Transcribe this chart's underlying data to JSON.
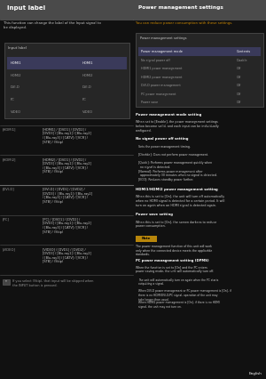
{
  "bg_color": "#111111",
  "panel_bg": "#1e1e1e",
  "header_bg": "#4a4a4a",
  "table_bg": "#262626",
  "table_selected_bg": "#3a3a5a",
  "white": "#ffffff",
  "light_text": "#cccccc",
  "mid_text": "#999999",
  "dim_text": "#888888",
  "sep_color": "#555555",
  "note_bg": "#b8860b",
  "left_panel": {
    "header": "Input label",
    "desc": "This function can change the label of the Input signal to\nbe displayed.",
    "table_title": "Input label",
    "table_rows": [
      [
        "HDMI1",
        "HDMI1"
      ],
      [
        "HDMI2",
        "HDMI2"
      ],
      [
        "DVI-D",
        "DVI-D"
      ],
      [
        "PC",
        "PC"
      ],
      [
        "VIDEO",
        "VIDEO"
      ]
    ],
    "settings": [
      {
        "label": "[HDMI1]",
        "text": "[HDMI1] / [DVD1] / [DVD2] /\n[DVD3] / [Blu-ray1] / [Blu-ray2]\n/ [Blu-ray3] / [CATV] / [VCR] /\n[STB] / (Skip)"
      },
      {
        "label": "[HDMI2]",
        "text": "[HDMI2] / [DVD1] / [DVD2] /\n[DVD3] / [Blu-ray1] / [Blu-ray2]\n/ [Blu-ray3] / [CATV] / [VCR] /\n[STB] / (Skip)"
      },
      {
        "label": "[DVI-D]",
        "text": "[DVI-D] / [DVD1] / [DVD2] /\n[DVD3] /  [Blu-ray1] / [Blu-ray2]\n/ [Blu-ray3] / [CATV] / [VCR] /\n[STB] / (Skip)",
        "highlight": true
      },
      {
        "label": "[PC]",
        "text": "[PC] / [DVD1] / [DVD2] /\n[DVD3] / [Blu-ray1] / [Blu-ray2]\n/ [Blu-ray3] / [CATV] / [VCR] /\n[STB] / (Skip)"
      },
      {
        "label": "[VIDEO]",
        "text": "[VIDEO] / [DVD1] / [DVD2] /\n[DVD3] / [Blu-ray1] / [Blu-ray2]\n/ [Blu-ray3] / [CATV] / [VCR] /\n[STB] / (Skip)"
      }
    ],
    "note": "If you select (Skip), that input will be skipped when\nthe INPUT button is pressed."
  },
  "right_panel": {
    "header": "Power management settings",
    "desc": "You can reduce power consumption with these settings.",
    "table_title": "Power management settings",
    "table_rows": [
      [
        "Power management mode",
        "Contents"
      ],
      [
        "No signal power off",
        "Disable"
      ],
      [
        "HDMI1 power management",
        "Off"
      ],
      [
        "HDMI2 power management",
        "Off"
      ],
      [
        "DVI-D power management",
        "Off"
      ],
      [
        "PC power management",
        "Off"
      ],
      [
        "Power save",
        "Off"
      ]
    ],
    "sections": [
      {
        "title": "Power management mode setting",
        "text": "When set to [Enable], the power management settings\nbelow become valid, and each input can be individually\nconfigured."
      },
      {
        "title": "No signal power off setting",
        "bullets": [
          "Sets the power management timing.",
          "[Disable]: Does not perform power management.",
          "[Quick]: Performs power management quickly when\n  no signal is detected.",
          "[Normal]: Performs power management after\n  approximately 30 minutes when no signal is detected.",
          "[ECO]: Reduces standby power further."
        ]
      },
      {
        "title": "HDMI1/HDMI2 power management setting",
        "text": "When this is set to [On], the unit will turn off automatically\nwhen no HDMI signal is detected for a certain period. It will\nturn on again when an HDMI signal is detected again."
      },
      {
        "title": "Power save setting",
        "text": "When this is set to [On], the screen darkens to reduce\npower consumption."
      }
    ],
    "note_label": "Note",
    "note_text": "The power management function of this unit will work\nonly when the connected device meets the applicable\nstandards.",
    "extra_title": "PC power management setting (DPMS)",
    "extra_text": "When the function is set to [On] and the PC enters\npower saving mode, the unit will automatically turn off.",
    "extra_bullets": [
      "The unit will automatically turn on again when the PC starts\noutputting a signal.",
      "When DVI-D power management or PC power management is [On], if\nthere is no HDMI/DVI-D/PC signal, operation of the unit may\ntake longer than usual.",
      "When HDMI1 power management is [On], if there is no HDMI\nsignal, the unit may not turn on."
    ],
    "page_label": "English"
  }
}
